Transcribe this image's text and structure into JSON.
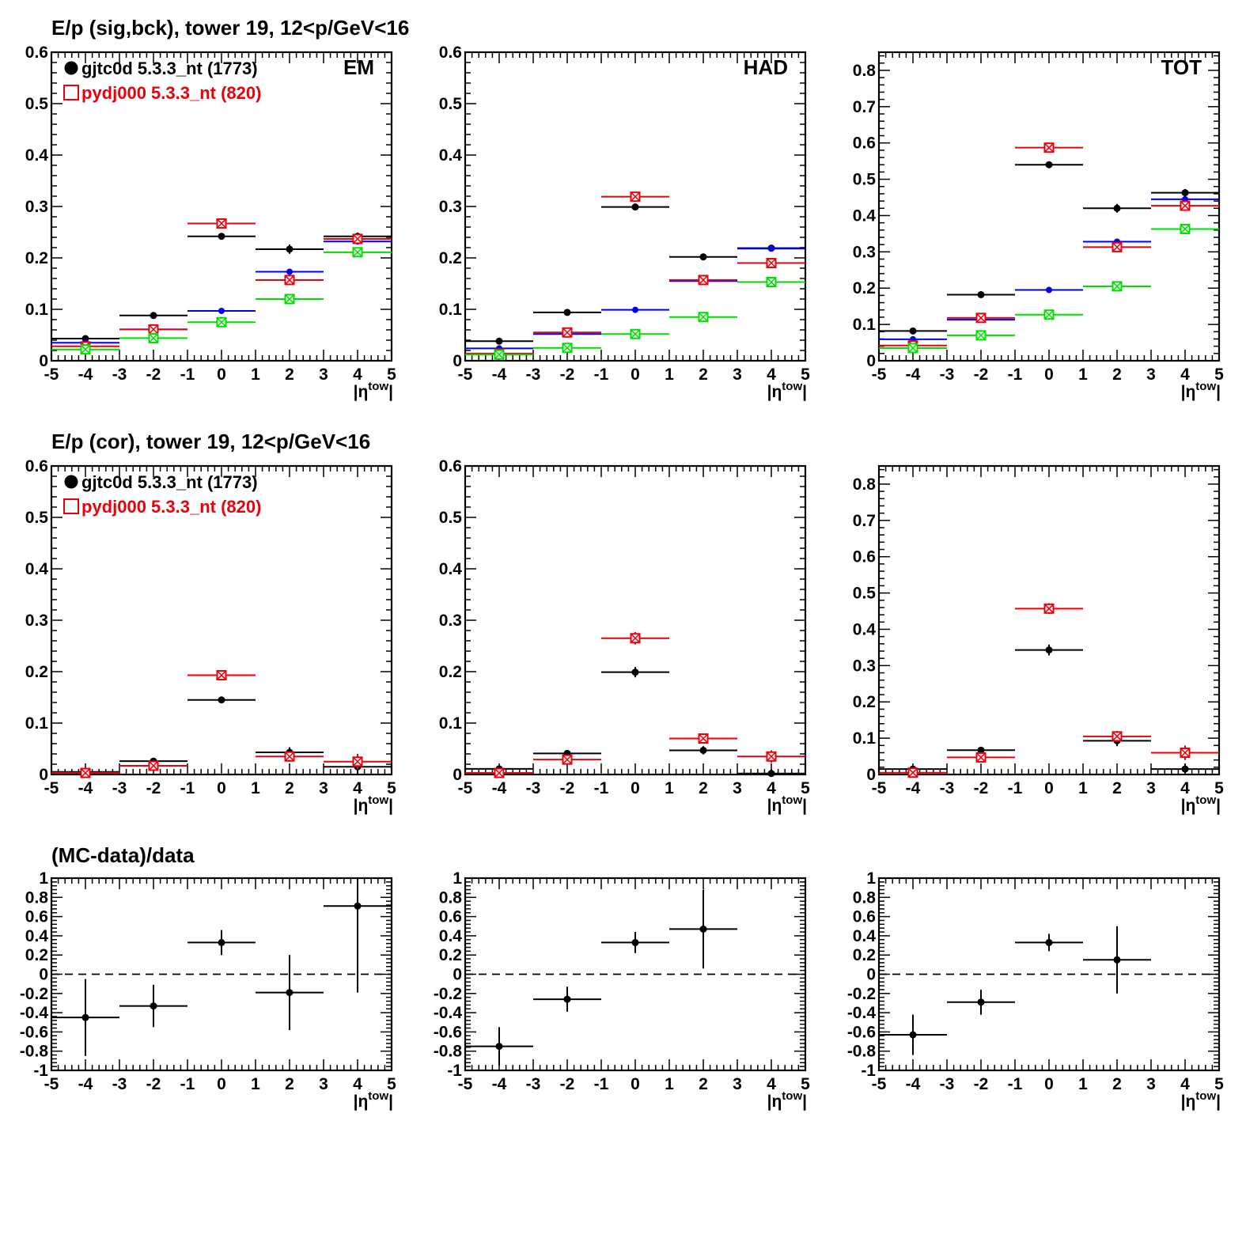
{
  "row_titles": [
    "E/p (sig,bck), tower 19, 12<p/GeV<16",
    "E/p (cor), tower 19, 12<p/GeV<16",
    "(MC-data)/data"
  ],
  "legend": [
    {
      "marker": "filled-circle",
      "color": "#000000",
      "label": "gjtc0d 5.3.3_nt (1773)"
    },
    {
      "marker": "open-square",
      "color": "#e8000b",
      "label": "pydj000 5.3.3_nt (820)"
    }
  ],
  "colors": {
    "data": "#000000",
    "mc": "#e8000b",
    "blue": "#0000ee",
    "green": "#00dd00",
    "dashed_zero": "#000000"
  },
  "x_axis": {
    "label": "|η^tow|",
    "base": "|η",
    "sup": "tow",
    "close": "|"
  },
  "chart_data": [
    {
      "id": "r1c1",
      "type": "scatter",
      "label": "EM",
      "xlim": [
        -5,
        5
      ],
      "ylim": [
        0,
        0.6
      ],
      "xticks": [
        "-5",
        "-4",
        "-3",
        "-2",
        "-1",
        "0",
        "1",
        "2",
        "3",
        "4",
        "5"
      ],
      "yticks": [
        "0",
        "0.1",
        "0.2",
        "0.3",
        "0.4",
        "0.5",
        "0.6"
      ],
      "x": [
        -4,
        -2,
        0,
        2,
        4
      ],
      "xerr": 1,
      "series": [
        {
          "name": "gjtc0d 5.3.3_nt (1773)",
          "marker": "dot",
          "color": "#000000",
          "values": [
            0.043,
            0.088,
            0.242,
            0.217,
            0.242
          ],
          "yerr": [
            0.003,
            0.003,
            0.004,
            0.009,
            0.007
          ]
        },
        {
          "marker": "dot-small",
          "color": "#0000ee",
          "values": [
            0.035,
            0.061,
            0.097,
            0.173,
            0.232
          ],
          "yerr": [
            0,
            0,
            0,
            0,
            0
          ]
        },
        {
          "name": "pydj000 5.3.3_nt (820)",
          "marker": "open-square-x",
          "color": "#e8000b",
          "values": [
            0.028,
            0.061,
            0.267,
            0.157,
            0.237
          ],
          "yerr": [
            0.003,
            0.004,
            0.005,
            0.006,
            0.008
          ]
        },
        {
          "marker": "open-square-x",
          "color": "#00dd00",
          "values": [
            0.022,
            0.044,
            0.075,
            0.12,
            0.211
          ],
          "yerr": [
            0.003,
            0.003,
            0.004,
            0.004,
            0.006
          ]
        }
      ]
    },
    {
      "id": "r1c2",
      "type": "scatter",
      "label": "HAD",
      "xlim": [
        -5,
        5
      ],
      "ylim": [
        0,
        0.6
      ],
      "xticks": [
        "-5",
        "-4",
        "-3",
        "-2",
        "-1",
        "0",
        "1",
        "2",
        "3",
        "4",
        "5"
      ],
      "yticks": [
        "0",
        "0.1",
        "0.2",
        "0.3",
        "0.4",
        "0.5",
        "0.6"
      ],
      "x": [
        -4,
        -2,
        0,
        2,
        4
      ],
      "xerr": 1,
      "series": [
        {
          "marker": "dot",
          "color": "#000000",
          "values": [
            0.038,
            0.094,
            0.299,
            0.202,
            0.219
          ],
          "yerr": [
            0.002,
            0.002,
            0.004,
            0.004,
            0.006
          ]
        },
        {
          "marker": "dot-small",
          "color": "#0000ee",
          "values": [
            0.024,
            0.052,
            0.099,
            0.155,
            0.218
          ],
          "yerr": [
            0,
            0,
            0,
            0,
            0
          ]
        },
        {
          "marker": "open-square-x",
          "color": "#e8000b",
          "values": [
            0.014,
            0.055,
            0.319,
            0.157,
            0.19
          ],
          "yerr": [
            0.002,
            0.003,
            0.007,
            0.006,
            0.008
          ]
        },
        {
          "marker": "open-square-x",
          "color": "#00dd00",
          "values": [
            0.012,
            0.025,
            0.052,
            0.085,
            0.153
          ],
          "yerr": [
            0.002,
            0.002,
            0.003,
            0.004,
            0.005
          ]
        }
      ]
    },
    {
      "id": "r1c3",
      "type": "scatter",
      "label": "TOT",
      "xlim": [
        -5,
        5
      ],
      "ylim": [
        0,
        0.85
      ],
      "xticks": [
        "-5",
        "-4",
        "-3",
        "-2",
        "-1",
        "0",
        "1",
        "2",
        "3",
        "4",
        "5"
      ],
      "yticks": [
        "0",
        "0.1",
        "0.2",
        "0.3",
        "0.4",
        "0.5",
        "0.6",
        "0.7",
        "0.8"
      ],
      "x": [
        -4,
        -2,
        0,
        2,
        4
      ],
      "xerr": 1,
      "series": [
        {
          "marker": "dot",
          "color": "#000000",
          "values": [
            0.082,
            0.182,
            0.54,
            0.42,
            0.463
          ],
          "yerr": [
            0.003,
            0.004,
            0.005,
            0.012,
            0.01
          ]
        },
        {
          "marker": "dot-small",
          "color": "#0000ee",
          "values": [
            0.059,
            0.113,
            0.195,
            0.328,
            0.445
          ],
          "yerr": [
            0,
            0,
            0,
            0,
            0
          ]
        },
        {
          "marker": "open-square-x",
          "color": "#e8000b",
          "values": [
            0.042,
            0.118,
            0.587,
            0.313,
            0.427
          ],
          "yerr": [
            0.004,
            0.005,
            0.008,
            0.01,
            0.014
          ]
        },
        {
          "marker": "open-square-x",
          "color": "#00dd00",
          "values": [
            0.035,
            0.07,
            0.127,
            0.205,
            0.363
          ],
          "yerr": [
            0.003,
            0.004,
            0.005,
            0.006,
            0.008
          ]
        }
      ]
    },
    {
      "id": "r2c1",
      "type": "scatter",
      "xlim": [
        -5,
        5
      ],
      "ylim": [
        0,
        0.6
      ],
      "xticks": [
        "-5",
        "-4",
        "-3",
        "-2",
        "-1",
        "0",
        "1",
        "2",
        "3",
        "4",
        "5"
      ],
      "yticks": [
        "0",
        "0.1",
        "0.2",
        "0.3",
        "0.4",
        "0.5",
        "0.6"
      ],
      "x": [
        -4,
        -2,
        0,
        2,
        4
      ],
      "xerr": 1,
      "series": [
        {
          "name": "gjtc0d 5.3.3_nt (1773)",
          "marker": "dot",
          "color": "#000000",
          "values": [
            0.005,
            0.026,
            0.145,
            0.043,
            0.015
          ],
          "yerr": [
            0.006,
            0.004,
            0.006,
            0.01,
            0.013
          ]
        },
        {
          "name": "pydj000 5.3.3_nt (820)",
          "marker": "open-square-x",
          "color": "#e8000b",
          "values": [
            0.003,
            0.017,
            0.193,
            0.035,
            0.025
          ],
          "yerr": [
            0.005,
            0.005,
            0.008,
            0.01,
            0.015
          ]
        }
      ]
    },
    {
      "id": "r2c2",
      "type": "scatter",
      "xlim": [
        -5,
        5
      ],
      "ylim": [
        0,
        0.6
      ],
      "xticks": [
        "-5",
        "-4",
        "-3",
        "-2",
        "-1",
        "0",
        "1",
        "2",
        "3",
        "4",
        "5"
      ],
      "yticks": [
        "0",
        "0.1",
        "0.2",
        "0.3",
        "0.4",
        "0.5",
        "0.6"
      ],
      "x": [
        -4,
        -2,
        0,
        2,
        4
      ],
      "xerr": 1,
      "series": [
        {
          "marker": "dot",
          "color": "#000000",
          "values": [
            0.011,
            0.041,
            0.199,
            0.047,
            0.002
          ],
          "yerr": [
            0.003,
            0.004,
            0.01,
            0.008,
            0.008
          ]
        },
        {
          "marker": "open-square-x",
          "color": "#e8000b",
          "values": [
            0.003,
            0.029,
            0.265,
            0.07,
            0.035
          ],
          "yerr": [
            0.005,
            0.006,
            0.012,
            0.01,
            0.012
          ]
        }
      ]
    },
    {
      "id": "r2c3",
      "type": "scatter",
      "xlim": [
        -5,
        5
      ],
      "ylim": [
        0,
        0.85
      ],
      "xticks": [
        "-5",
        "-4",
        "-3",
        "-2",
        "-1",
        "0",
        "1",
        "2",
        "3",
        "4",
        "5"
      ],
      "yticks": [
        "0",
        "0.1",
        "0.2",
        "0.3",
        "0.4",
        "0.5",
        "0.6",
        "0.7",
        "0.8"
      ],
      "x": [
        -4,
        -2,
        0,
        2,
        4
      ],
      "xerr": 1,
      "series": [
        {
          "marker": "dot",
          "color": "#000000",
          "values": [
            0.015,
            0.067,
            0.343,
            0.093,
            0.015
          ],
          "yerr": [
            0.004,
            0.005,
            0.015,
            0.015,
            0.015
          ]
        },
        {
          "marker": "open-square-x",
          "color": "#e8000b",
          "values": [
            0.005,
            0.047,
            0.457,
            0.105,
            0.06
          ],
          "yerr": [
            0.005,
            0.008,
            0.015,
            0.015,
            0.02
          ]
        }
      ]
    },
    {
      "id": "r3c1",
      "type": "scatter",
      "xlim": [
        -5,
        5
      ],
      "ylim": [
        -1,
        1
      ],
      "xticks": [
        "-5",
        "-4",
        "-3",
        "-2",
        "-1",
        "0",
        "1",
        "2",
        "3",
        "4",
        "5"
      ],
      "yticks": [
        "-1",
        "-0.8",
        "-0.6",
        "-0.4",
        "-0.2",
        "0",
        "0.2",
        "0.4",
        "0.6",
        "0.8",
        "1"
      ],
      "x": [
        -4,
        -2,
        0,
        2,
        4
      ],
      "xerr": 1,
      "reference_line": 0,
      "series": [
        {
          "marker": "dot",
          "color": "#000000",
          "values": [
            -0.45,
            -0.33,
            0.33,
            -0.19,
            0.71
          ],
          "yerr": [
            0.4,
            0.22,
            0.13,
            0.39,
            0.9
          ]
        }
      ]
    },
    {
      "id": "r3c2",
      "type": "scatter",
      "xlim": [
        -5,
        5
      ],
      "ylim": [
        -1,
        1
      ],
      "xticks": [
        "-5",
        "-4",
        "-3",
        "-2",
        "-1",
        "0",
        "1",
        "2",
        "3",
        "4",
        "5"
      ],
      "yticks": [
        "-1",
        "-0.8",
        "-0.6",
        "-0.4",
        "-0.2",
        "0",
        "0.2",
        "0.4",
        "0.6",
        "0.8",
        "1"
      ],
      "x": [
        -4,
        -2,
        0,
        2
      ],
      "xerr": 1,
      "reference_line": 0,
      "series": [
        {
          "marker": "dot",
          "color": "#000000",
          "values": [
            -0.75,
            -0.26,
            0.33,
            0.47
          ],
          "yerr": [
            0.2,
            0.13,
            0.11,
            0.41
          ]
        }
      ]
    },
    {
      "id": "r3c3",
      "type": "scatter",
      "xlim": [
        -5,
        5
      ],
      "ylim": [
        -1,
        1
      ],
      "xticks": [
        "-5",
        "-4",
        "-3",
        "-2",
        "-1",
        "0",
        "1",
        "2",
        "3",
        "4",
        "5"
      ],
      "yticks": [
        "-1",
        "-0.8",
        "-0.6",
        "-0.4",
        "-0.2",
        "0",
        "0.2",
        "0.4",
        "0.6",
        "0.8",
        "1"
      ],
      "x": [
        -4,
        -2,
        0,
        2
      ],
      "xerr": 1,
      "reference_line": 0,
      "series": [
        {
          "marker": "dot",
          "color": "#000000",
          "values": [
            -0.63,
            -0.29,
            0.33,
            0.15
          ],
          "yerr": [
            0.21,
            0.13,
            0.09,
            0.35
          ]
        }
      ]
    }
  ]
}
